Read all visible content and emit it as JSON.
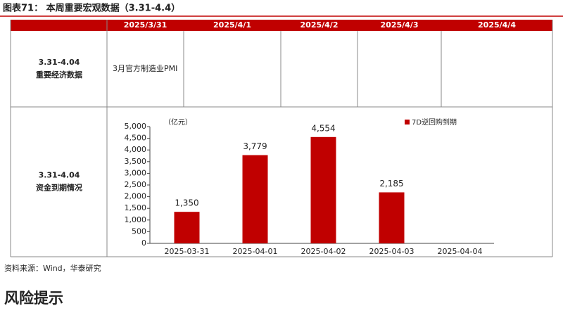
{
  "header": {
    "title": "图表71： 本周重要宏观数据（3.31-4.4）"
  },
  "table": {
    "columns": [
      "2025/3/31",
      "2025/4/1",
      "2025/4/2",
      "2025/4/3",
      "2025/4/4"
    ],
    "rows": [
      {
        "period": "3.31-4.04",
        "label": "重要经济数据",
        "cells": [
          [
            "3月官方制造业PMI"
          ],
          [],
          [],
          [],
          []
        ]
      },
      {
        "period": "3.31-4.04",
        "label": "资金到期情况"
      }
    ]
  },
  "chart_data": {
    "type": "bar",
    "unit_label": "（亿元）",
    "categories": [
      "2025-03-31",
      "2025-04-01",
      "2025-04-02",
      "2025-04-03",
      "2025-04-04"
    ],
    "series": [
      {
        "name": "7D逆回购到期",
        "color": "#c00000",
        "values": [
          1350,
          3779,
          4554,
          2185,
          null
        ],
        "value_labels": [
          "1,350",
          "3,779",
          "4,554",
          "2,185",
          null
        ]
      }
    ],
    "ylim": [
      0,
      5000
    ],
    "yticks": [
      0,
      {
        "value": 500,
        "label": "500"
      },
      {
        "value": 1000,
        "label": "1,000"
      },
      {
        "value": 1500,
        "label": "1,500"
      },
      {
        "value": 2000,
        "label": "2,000"
      },
      {
        "value": 2500,
        "label": "2,500"
      },
      {
        "value": 3000,
        "label": "3,000"
      },
      {
        "value": 3500,
        "label": "3,500"
      },
      {
        "value": 4000,
        "label": "4,000"
      },
      {
        "value": 4500,
        "label": "4,500"
      },
      {
        "value": 5000,
        "label": "5,000"
      }
    ],
    "legend": "top-right"
  },
  "source": "资料来源：Wind，华泰研究",
  "section": {
    "title": "风险提示"
  }
}
